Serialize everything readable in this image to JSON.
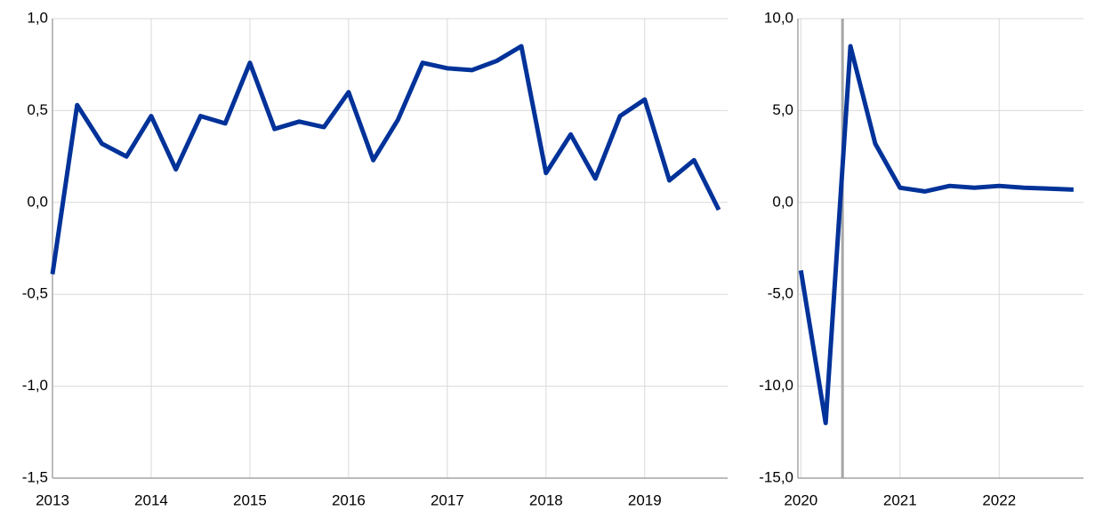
{
  "chart_data": [
    {
      "type": "line",
      "x": [
        2013,
        2013.25,
        2013.5,
        2013.75,
        2014,
        2014.25,
        2014.5,
        2014.75,
        2015,
        2015.25,
        2015.5,
        2015.75,
        2016,
        2016.25,
        2016.5,
        2016.75,
        2017,
        2017.25,
        2017.5,
        2017.75,
        2018,
        2018.25,
        2018.5,
        2018.75,
        2019,
        2019.25,
        2019.5,
        2019.75
      ],
      "series": [
        {
          "color": "#003299",
          "values": [
            -0.39,
            0.53,
            0.32,
            0.25,
            0.47,
            0.18,
            0.47,
            0.43,
            0.76,
            0.4,
            0.44,
            0.41,
            0.6,
            0.23,
            0.45,
            0.76,
            0.73,
            0.72,
            0.77,
            0.85,
            0.16,
            0.37,
            0.13,
            0.47,
            0.56,
            0.12,
            0.23,
            -0.04
          ]
        }
      ],
      "xlim": [
        2013,
        2019.84
      ],
      "xticks": [
        2013,
        2014,
        2015,
        2016,
        2017,
        2018,
        2019
      ],
      "ylim": [
        -1.5,
        1
      ],
      "yticks": [
        {
          "value": -1.5,
          "label": "-1,5"
        },
        {
          "value": -1,
          "label": "-1,0"
        },
        {
          "value": -0.5,
          "label": "-0,5"
        },
        {
          "value": 0,
          "label": "0,0"
        },
        {
          "value": 0.5,
          "label": "0,5"
        },
        {
          "value": 1,
          "label": "1,0"
        }
      ],
      "grid": true
    },
    {
      "type": "line",
      "x": [
        2020,
        2020.25,
        2020.5,
        2020.75,
        2021,
        2021.25,
        2021.5,
        2021.75,
        2022,
        2022.25,
        2022.5,
        2022.75
      ],
      "series": [
        {
          "color": "#003299",
          "values": [
            -3.7,
            -12.0,
            8.5,
            3.2,
            0.8,
            0.6,
            0.9,
            0.8,
            0.9,
            0.8,
            0.75,
            0.7
          ]
        }
      ],
      "xlim": [
        2019.97,
        2022.85
      ],
      "xticks": [
        2020,
        2021,
        2022
      ],
      "ylim": [
        -15,
        10
      ],
      "yticks": [
        {
          "value": -15,
          "label": "-15,0"
        },
        {
          "value": -10,
          "label": "-10,0"
        },
        {
          "value": -5,
          "label": "-5,0"
        },
        {
          "value": 0,
          "label": "0,0"
        },
        {
          "value": 5,
          "label": "5,0"
        },
        {
          "value": 10,
          "label": "10,0"
        }
      ],
      "grid": true,
      "vline": 2020.42,
      "vline_color": "#a6a6a6"
    }
  ]
}
